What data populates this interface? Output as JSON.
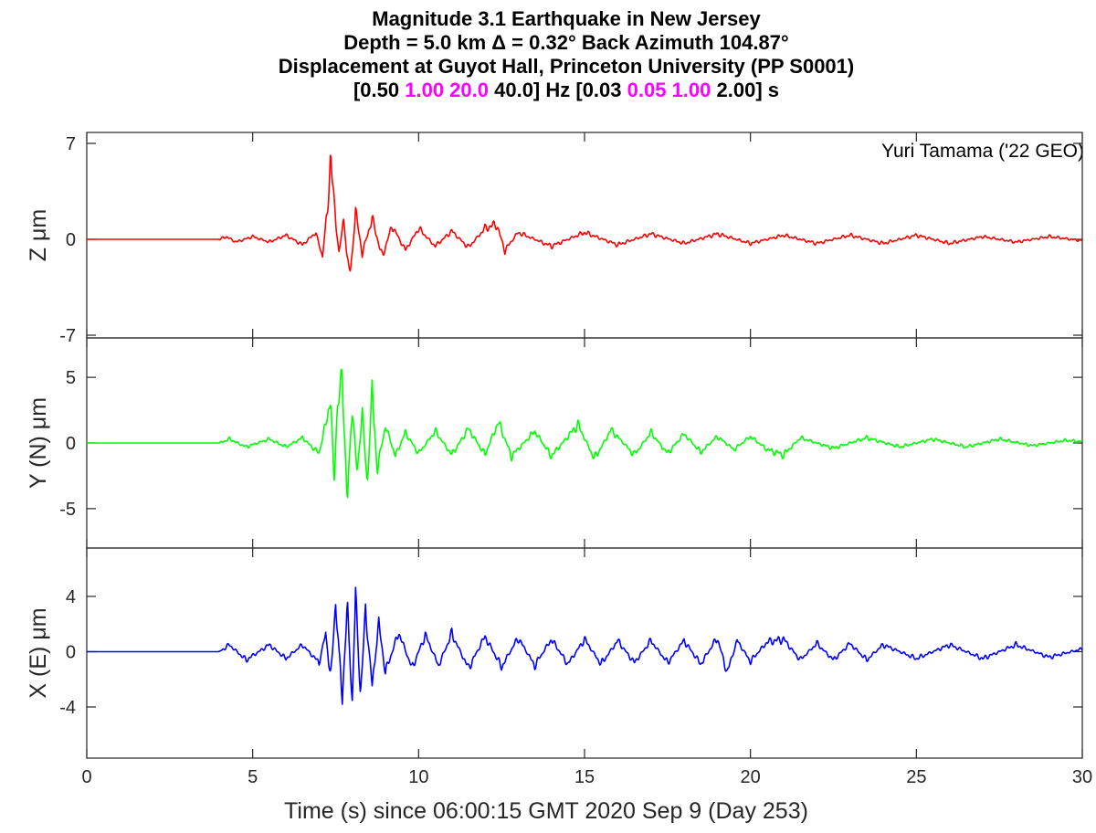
{
  "title": {
    "line1": "Magnitude 3.1 Earthquake in New Jersey",
    "line2": "Depth = 5.0 km  Δ = 0.32°  Back Azimuth 104.87°",
    "line3": "Displacement at Guyot Hall, Princeton University (PP S0001)",
    "line4_a": "[0.50 ",
    "line4_b": "1.00 20.0",
    "line4_c": " 40.0] Hz   [0.03 ",
    "line4_d": "0.05 1.00",
    "line4_e": " 2.00] s"
  },
  "credit": "Yuri Tamama ('22 GEO)",
  "chart_data": {
    "type": "line",
    "title": "Magnitude 3.1 Earthquake in New Jersey",
    "xlabel": "Time (s) since 06:00:15 GMT 2020 Sep 9 (Day 253)",
    "xlim": [
      0,
      30
    ],
    "xticks": [
      0,
      5,
      10,
      15,
      20,
      25,
      30
    ],
    "grid": false,
    "panels": [
      {
        "name": "Z",
        "ylabel": "Z μm",
        "color": "#ff0000",
        "ylim": [
          -7.2,
          7.8
        ],
        "yticks": [
          -7,
          0,
          7
        ],
        "keypoints": [
          [
            0,
            0
          ],
          [
            4.0,
            0
          ],
          [
            4.2,
            0.2
          ],
          [
            4.5,
            -0.2
          ],
          [
            5.0,
            0.2
          ],
          [
            5.5,
            -0.2
          ],
          [
            6.0,
            0.3
          ],
          [
            6.5,
            -0.4
          ],
          [
            6.9,
            0.5
          ],
          [
            7.1,
            -1.2
          ],
          [
            7.25,
            2.0
          ],
          [
            7.35,
            6.4
          ],
          [
            7.45,
            2.5
          ],
          [
            7.6,
            -1.0
          ],
          [
            7.75,
            1.5
          ],
          [
            7.85,
            -1.6
          ],
          [
            7.95,
            -2.5
          ],
          [
            8.1,
            2.0
          ],
          [
            8.3,
            -1.0
          ],
          [
            8.6,
            1.5
          ],
          [
            8.9,
            -1.3
          ],
          [
            9.2,
            1.0
          ],
          [
            9.6,
            -0.8
          ],
          [
            10.0,
            0.8
          ],
          [
            10.5,
            -0.5
          ],
          [
            11.0,
            0.6
          ],
          [
            11.5,
            -0.6
          ],
          [
            12.0,
            0.8
          ],
          [
            12.35,
            1.1
          ],
          [
            12.6,
            -0.8
          ],
          [
            13.0,
            0.5
          ],
          [
            14.0,
            -0.5
          ],
          [
            15.0,
            0.5
          ],
          [
            16.0,
            -0.4
          ],
          [
            17.0,
            0.4
          ],
          [
            18.0,
            -0.3
          ],
          [
            19.0,
            0.4
          ],
          [
            20.0,
            -0.3
          ],
          [
            21.0,
            0.3
          ],
          [
            22.0,
            -0.3
          ],
          [
            23.0,
            0.3
          ],
          [
            24.0,
            -0.3
          ],
          [
            25.0,
            0.3
          ],
          [
            26.0,
            -0.3
          ],
          [
            27.0,
            0.2
          ],
          [
            28.0,
            -0.2
          ],
          [
            29.0,
            0.2
          ],
          [
            30.0,
            -0.1
          ]
        ]
      },
      {
        "name": "Y (N)",
        "ylabel": "Y (N) μm",
        "color": "#00ff00",
        "ylim": [
          -8,
          8
        ],
        "yticks": [
          -5,
          0,
          5
        ],
        "keypoints": [
          [
            0,
            0
          ],
          [
            4.0,
            0
          ],
          [
            4.3,
            0.3
          ],
          [
            4.8,
            -0.3
          ],
          [
            5.5,
            0.3
          ],
          [
            6.0,
            -0.3
          ],
          [
            6.5,
            0.4
          ],
          [
            7.0,
            -0.8
          ],
          [
            7.25,
            2.0
          ],
          [
            7.35,
            3.7
          ],
          [
            7.45,
            -3.2
          ],
          [
            7.55,
            2.8
          ],
          [
            7.7,
            4.8
          ],
          [
            7.85,
            -4.5
          ],
          [
            8.0,
            3.0
          ],
          [
            8.15,
            -2.5
          ],
          [
            8.3,
            2.5
          ],
          [
            8.45,
            -3.3
          ],
          [
            8.6,
            3.9
          ],
          [
            8.75,
            -2.0
          ],
          [
            9.0,
            1.3
          ],
          [
            9.3,
            -1.0
          ],
          [
            9.6,
            0.8
          ],
          [
            10.0,
            -0.8
          ],
          [
            10.5,
            0.9
          ],
          [
            11.0,
            -0.9
          ],
          [
            11.5,
            1.1
          ],
          [
            12.0,
            -0.9
          ],
          [
            12.4,
            1.6
          ],
          [
            12.8,
            -1.0
          ],
          [
            13.5,
            0.9
          ],
          [
            14.0,
            -1.0
          ],
          [
            14.8,
            1.4
          ],
          [
            15.3,
            -1.2
          ],
          [
            15.8,
            1.0
          ],
          [
            16.5,
            -0.9
          ],
          [
            17.0,
            0.8
          ],
          [
            17.5,
            -0.8
          ],
          [
            18.0,
            0.7
          ],
          [
            18.5,
            -0.7
          ],
          [
            19.0,
            0.5
          ],
          [
            19.5,
            -0.5
          ],
          [
            20.0,
            0.5
          ],
          [
            20.5,
            -0.5
          ],
          [
            21.0,
            -0.9
          ],
          [
            21.5,
            0.4
          ],
          [
            22.5,
            -0.4
          ],
          [
            23.5,
            0.4
          ],
          [
            24.5,
            -0.3
          ],
          [
            25.5,
            0.3
          ],
          [
            26.5,
            -0.3
          ],
          [
            27.5,
            0.3
          ],
          [
            28.5,
            -0.2
          ],
          [
            29.5,
            0.2
          ],
          [
            30.0,
            0.1
          ]
        ]
      },
      {
        "name": "X (E)",
        "ylabel": "X (E) μm",
        "color": "#0000ff",
        "ylim": [
          -7.7,
          7.5
        ],
        "yticks": [
          -4,
          0,
          4
        ],
        "keypoints": [
          [
            0,
            0
          ],
          [
            4.0,
            0
          ],
          [
            4.3,
            0.5
          ],
          [
            4.8,
            -0.6
          ],
          [
            5.5,
            0.5
          ],
          [
            6.0,
            -0.5
          ],
          [
            6.5,
            0.5
          ],
          [
            7.0,
            -0.8
          ],
          [
            7.2,
            1.3
          ],
          [
            7.35,
            -2.0
          ],
          [
            7.5,
            3.6
          ],
          [
            7.7,
            -3.3
          ],
          [
            7.85,
            3.2
          ],
          [
            8.0,
            -3.6
          ],
          [
            8.1,
            4.0
          ],
          [
            8.25,
            -3.2
          ],
          [
            8.4,
            3.0
          ],
          [
            8.6,
            -2.5
          ],
          [
            8.8,
            2.0
          ],
          [
            9.0,
            -1.5
          ],
          [
            9.4,
            1.4
          ],
          [
            9.8,
            -1.2
          ],
          [
            10.2,
            1.2
          ],
          [
            10.6,
            -1.0
          ],
          [
            11.0,
            1.3
          ],
          [
            11.5,
            -1.2
          ],
          [
            12.0,
            1.1
          ],
          [
            12.5,
            -1.1
          ],
          [
            13.0,
            1.0
          ],
          [
            13.5,
            -1.0
          ],
          [
            14.0,
            0.9
          ],
          [
            14.5,
            -0.9
          ],
          [
            15.0,
            0.9
          ],
          [
            15.5,
            -0.9
          ],
          [
            16.0,
            0.8
          ],
          [
            16.5,
            -0.8
          ],
          [
            17.0,
            0.8
          ],
          [
            17.5,
            -0.8
          ],
          [
            18.0,
            0.8
          ],
          [
            18.5,
            -0.9
          ],
          [
            19.0,
            1.0
          ],
          [
            19.3,
            -1.5
          ],
          [
            19.6,
            0.8
          ],
          [
            20.0,
            -0.7
          ],
          [
            20.5,
            0.7
          ],
          [
            21.0,
            0.9
          ],
          [
            21.5,
            -0.6
          ],
          [
            22.0,
            0.6
          ],
          [
            22.5,
            -0.6
          ],
          [
            23.0,
            0.6
          ],
          [
            23.5,
            -0.6
          ],
          [
            24.0,
            0.5
          ],
          [
            25.0,
            -0.5
          ],
          [
            26.0,
            0.5
          ],
          [
            27.0,
            -0.5
          ],
          [
            28.0,
            0.5
          ],
          [
            29.0,
            -0.4
          ],
          [
            30.0,
            0.2
          ]
        ]
      }
    ]
  }
}
